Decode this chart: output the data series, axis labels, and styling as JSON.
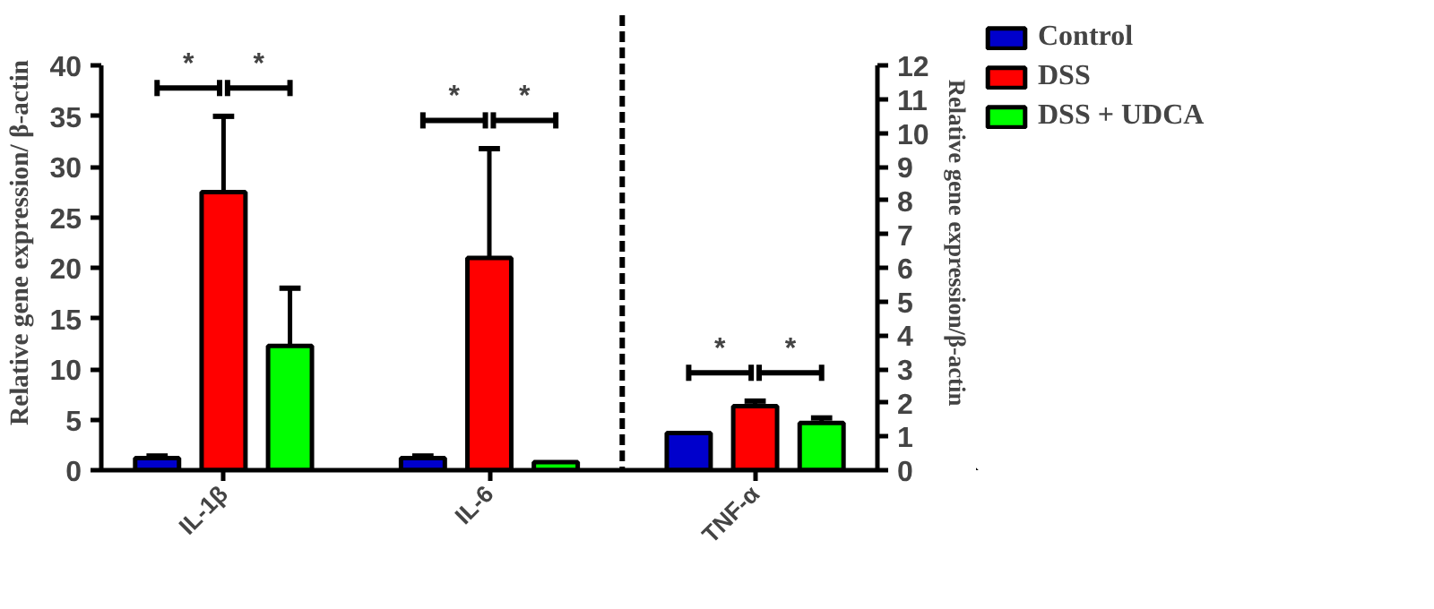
{
  "chart_data": {
    "type": "bar",
    "ylabel": "Relative gene expression/ β-actin",
    "y2label": "Relative gene expression/β-actin",
    "categories": [
      "IL-1β",
      "IL-6",
      "TNF-α"
    ],
    "series": [
      {
        "name": "Control",
        "color": "#0000cc",
        "values": [
          1.2,
          1.2,
          null
        ],
        "errors": [
          [
            1.2,
            1.4
          ],
          [
            1.2,
            1.4
          ],
          null
        ]
      },
      {
        "name": "DSS",
        "color": "#ff0000",
        "values": [
          27.5,
          21,
          null
        ],
        "errors": [
          [
            27.5,
            35
          ],
          [
            21,
            31.8
          ],
          null
        ]
      },
      {
        "name": "DSS + UDCA",
        "color": "#00ff00",
        "values": [
          12.3,
          0.8,
          null
        ],
        "errors": [
          [
            12.3,
            18
          ],
          null,
          null
        ]
      },
      {
        "color": "#0000cc",
        "axis": "y2",
        "values": [
          null,
          null,
          1.1
        ]
      },
      {
        "color": "#ff0000",
        "axis": "y2",
        "values": [
          null,
          null,
          1.9
        ],
        "errors": [
          null,
          null,
          [
            1.9,
            2.05
          ]
        ]
      },
      {
        "color": "#00ff00",
        "axis": "y2",
        "values": [
          null,
          null,
          1.4
        ],
        "errors": [
          null,
          null,
          [
            1.4,
            1.55
          ]
        ]
      }
    ],
    "ylim": [
      0,
      40
    ],
    "yticks": [
      0,
      5,
      10,
      15,
      20,
      25,
      30,
      35,
      40
    ],
    "y2lim": [
      0,
      12
    ],
    "y2ticks": [
      0,
      1,
      2,
      3,
      4,
      5,
      6,
      7,
      8,
      9,
      10,
      11,
      12
    ],
    "annotations": [
      "*",
      "*",
      "*",
      "*",
      "*",
      "*"
    ],
    "grid": false,
    "legend": "right"
  }
}
